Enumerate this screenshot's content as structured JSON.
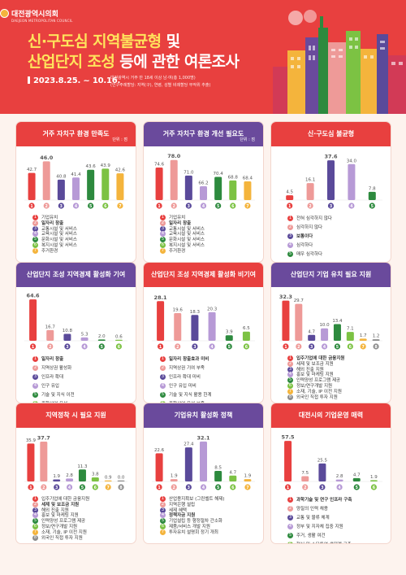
{
  "header": {
    "org_name": "대전광역시의회",
    "org_sub": "DAEJEON METROPOLITAN COUNCIL",
    "title_line1_a": "신·구도심 지역불균형",
    "title_line1_b": " 및",
    "title_line2_a": "산업단지 조성",
    "title_line2_b": " 등에 관한 여론조사",
    "period": "2023.8.25. ~ 10.16.",
    "note1": "대전광역시 거주 만 18세 이상 남·여(총 1,000명)",
    "note2": "(인구주례할당: 지역(구), 연령, 성별 비례할당 무작위 추출)"
  },
  "colors": {
    "header": "#e8403f",
    "red": "#e8403f",
    "purple": "#6a4a9c",
    "items": [
      "#e8403f",
      "#ee9a98",
      "#5a4a9a",
      "#b79ad6",
      "#2d8a3e",
      "#7cc243",
      "#f4b43c"
    ]
  },
  "chart_data": [
    {
      "type": "bar",
      "title": "거주 자치구 환경 만족도",
      "unit": "단위 : 점",
      "theme": "red",
      "categories": [
        "1",
        "2",
        "3",
        "4",
        "5",
        "6",
        "7"
      ],
      "values": [
        42.7,
        46.0,
        40.8,
        41.4,
        43.6,
        43.9,
        42.6
      ],
      "ylim": [
        35,
        47
      ],
      "legend": [
        "기업유치",
        "일자리 창출",
        "교통시설 및 서비스",
        "교육시설 및 서비스",
        "문화시설 및 서비스",
        "복지시설 및 서비스",
        "주거환경"
      ],
      "bold": [
        1
      ]
    },
    {
      "type": "bar",
      "title": "거주 자치구 환경 개선 필요도",
      "unit": "단위 : 점",
      "theme": "purple",
      "categories": [
        "1",
        "2",
        "3",
        "4",
        "5",
        "6",
        "7"
      ],
      "values": [
        74.6,
        78.0,
        71.0,
        66.2,
        70.4,
        68.8,
        68.4
      ],
      "ylim": [
        60,
        79
      ],
      "legend": [
        "기업유치",
        "일자리 창출",
        "교통시설 및 서비스",
        "교육시설 및 서비스",
        "문화시설 및 서비스",
        "복지시설 및 서비스",
        "주거환경"
      ],
      "bold": [
        1
      ]
    },
    {
      "type": "bar",
      "title": "신·구도심 불균형",
      "theme": "red",
      "categories": [
        "1",
        "2",
        "3",
        "4",
        "5"
      ],
      "values": [
        4.5,
        16.1,
        37.6,
        34.0,
        7.8
      ],
      "ylim": [
        0,
        40
      ],
      "legend": [
        "전혀 심각하지 않다",
        "심각하지 않다",
        "보통이다",
        "심각하다",
        "매우 심각하다"
      ],
      "bold": [
        2
      ],
      "palette": [
        0,
        1,
        2,
        3,
        4
      ]
    },
    {
      "type": "bar",
      "title": "산업단지 조성 지역경제 활성화 기여",
      "theme": "purple",
      "categories": [
        "1",
        "2",
        "3",
        "4",
        "5",
        "6"
      ],
      "values": [
        64.6,
        16.7,
        10.8,
        5.3,
        2.0,
        0.6
      ],
      "ylim": [
        0,
        66
      ],
      "legend": [
        "일자리 창출",
        "지역상권 활성화",
        "인프라 확대",
        "인구 유입",
        "기술 및 지식 이전",
        "종합산업 육성"
      ],
      "bold": [
        0
      ]
    },
    {
      "type": "bar",
      "title": "산업단지 조성 지역경제 활성화 비기여",
      "theme": "red",
      "categories": [
        "1",
        "2",
        "3",
        "4",
        "5",
        "6"
      ],
      "values": [
        28.1,
        19.6,
        18.3,
        20.3,
        3.9,
        6.5
      ],
      "ylim": [
        0,
        30
      ],
      "legend": [
        "일자리 창출효과 미비",
        "지역상권 기여 부족",
        "인프라 확대 미비",
        "인구 유입 미비",
        "기술 및 지식 활용 한계",
        "종합산업 육성 부족"
      ],
      "bold": [
        0
      ]
    },
    {
      "type": "bar",
      "title": "산업단지 기업 유치 필요 지원",
      "theme": "purple",
      "categories": [
        "1",
        "2",
        "3",
        "4",
        "5",
        "6",
        "7",
        "8"
      ],
      "values": [
        32.3,
        29.7,
        4.7,
        10.0,
        13.4,
        7.1,
        1.7,
        1.2
      ],
      "ylim": [
        0,
        34
      ],
      "legend": [
        "입주기업에 대한 금융지원",
        "세제 및 보조금 지원",
        "해외 진출 지원",
        "홍보 및 마케팅 지원",
        "인력양성 프로그램 제공",
        "정보/연구개발 지원",
        "소재, 기술, IP 이전 지원",
        "외국인 직접 투자 지원"
      ],
      "bold": [
        0
      ],
      "palette": [
        0,
        1,
        2,
        3,
        4,
        5,
        6,
        7
      ]
    },
    {
      "type": "bar",
      "title": "지역정착 시 필요 지원",
      "theme": "red",
      "categories": [
        "1",
        "2",
        "3",
        "4",
        "5",
        "6",
        "7",
        "8"
      ],
      "values": [
        35.9,
        37.7,
        1.9,
        2.8,
        11.3,
        3.8,
        0.9,
        0.0
      ],
      "ylim": [
        0,
        40
      ],
      "legend": [
        "입주기업에 대한 금융지원",
        "세제 및 보조금 지원",
        "해외 진출 지원",
        "홍보 및 마케팅 지원",
        "인력양성 프로그램 제공",
        "정보/연구개발 지원",
        "소재, 기술, IP 이전 지원",
        "외국인 직접 투자 지원"
      ],
      "bold": [
        1
      ],
      "palette": [
        0,
        1,
        2,
        3,
        4,
        5,
        6,
        7
      ]
    },
    {
      "type": "bar",
      "title": "기업유치 활성화 정책",
      "theme": "purple",
      "categories": [
        "1",
        "2",
        "3",
        "4",
        "5",
        "6",
        "7"
      ],
      "values": [
        22.6,
        1.9,
        27.4,
        32.1,
        8.5,
        4.7,
        1.9
      ],
      "ylim": [
        0,
        34
      ],
      "legend": [
        "산업용지확보 (그린벨트 해제)",
        "지역은행 설립",
        "세제 혜택",
        "정책자금 지원",
        "기업설립 등 행정절차 간소화",
        "제품/서비스 개발 지원",
        "투자유치 설명회 정기 개최"
      ],
      "bold": [
        3
      ]
    },
    {
      "type": "bar",
      "title": "대전시의 기업운영 매력",
      "theme": "red",
      "categories": [
        "1",
        "2",
        "3",
        "4",
        "5",
        "6"
      ],
      "values": [
        57.5,
        7.5,
        25.5,
        2.8,
        4.7,
        1.9
      ],
      "ylim": [
        0,
        60
      ],
      "legend": [
        "과학기술 및 연구 인프라 구축",
        "양질의 인력 채용",
        "교통 및 물류 체계",
        "정부 및 지자체 집중 지원",
        "주거, 생활 여건",
        "혁신 및 스타트업 생태계 구축"
      ],
      "bold": [
        0
      ]
    }
  ]
}
